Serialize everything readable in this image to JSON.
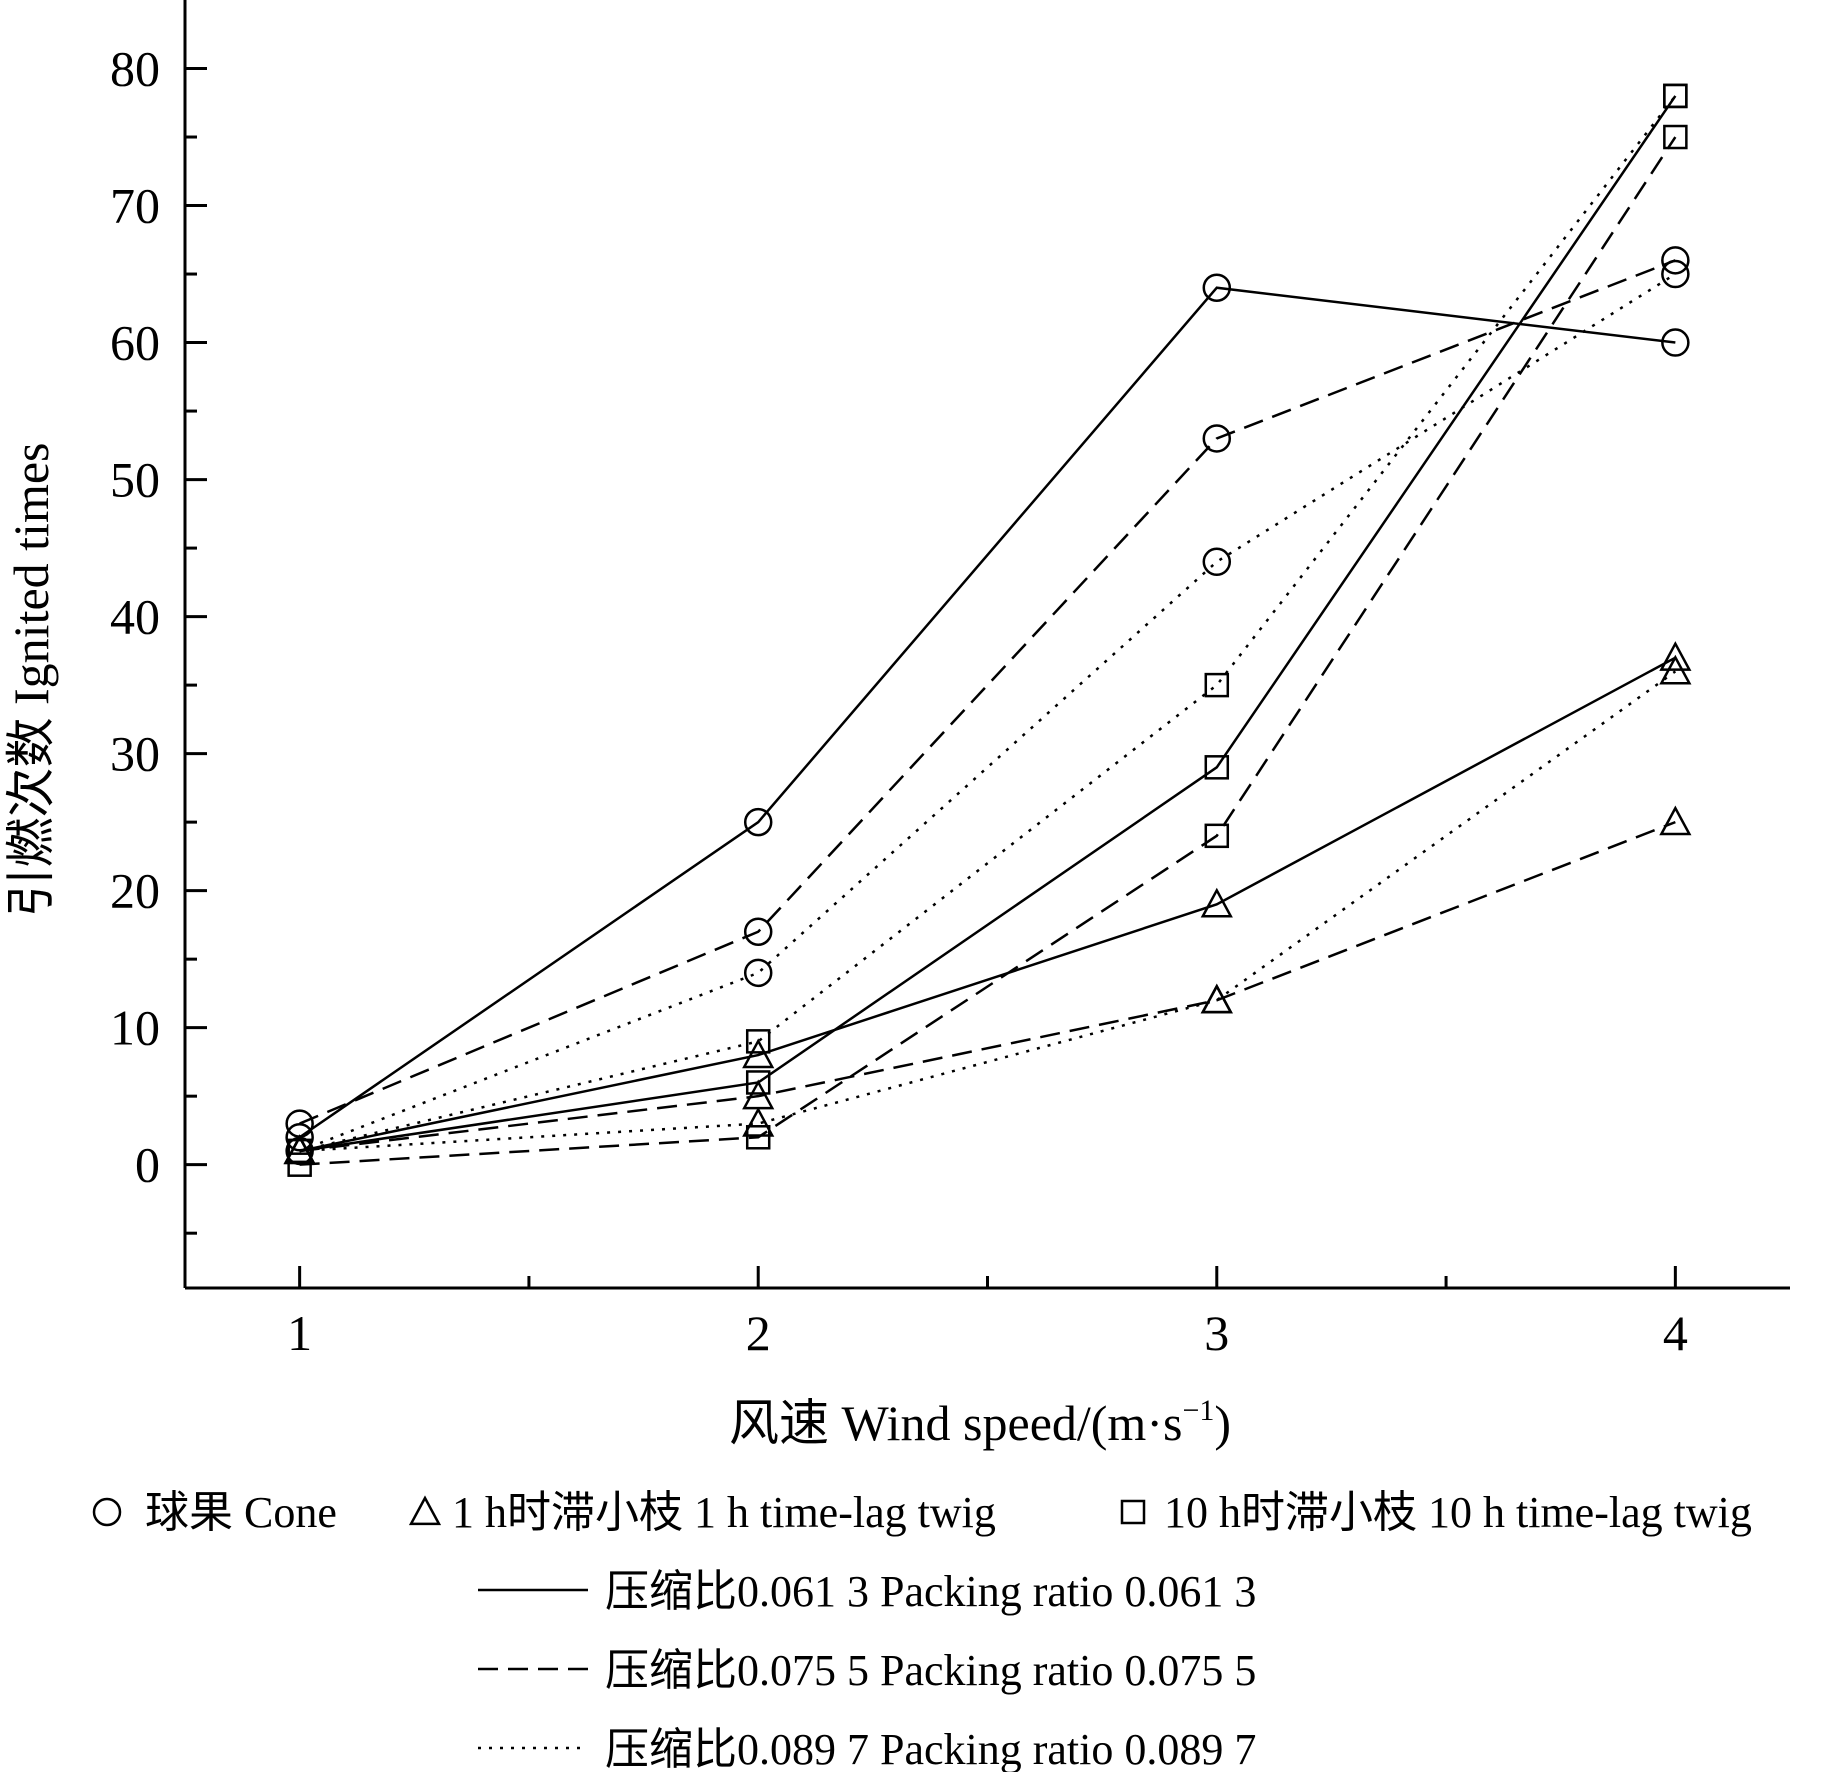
{
  "chart_data": {
    "type": "line",
    "xlabel": "风速 Wind speed/(m·s",
    "xlabel_sup": "−1",
    "xlabel_end": ")",
    "ylabel": "引燃次数  Ignited times",
    "x": [
      1,
      2,
      3,
      4
    ],
    "xlim": [
      0.75,
      4.25
    ],
    "ylim": [
      -9,
      85
    ],
    "x_ticks": [
      1,
      2,
      3,
      4
    ],
    "x_minor_ticks": [
      1.5,
      2.5,
      3.5
    ],
    "y_ticks": [
      0,
      10,
      20,
      30,
      40,
      50,
      60,
      70,
      80
    ],
    "y_minor_ticks": [
      -5,
      5,
      15,
      25,
      35,
      45,
      55,
      65,
      75
    ],
    "grid": false,
    "legend_placement": "bottom",
    "markers": [
      {
        "id": "cone",
        "shape": "circle",
        "label": "球果 Cone"
      },
      {
        "id": "twig1h",
        "shape": "triangle",
        "label": "1 h时滞小枝  1 h time-lag twig"
      },
      {
        "id": "twig10h",
        "shape": "square",
        "label": "10 h时滞小枝  10 h time-lag twig"
      }
    ],
    "line_styles": [
      {
        "id": "solid",
        "dash": "",
        "label": "压缩比0.061 3  Packing ratio 0.061 3"
      },
      {
        "id": "dashed",
        "dash": "20,10",
        "label": "压缩比0.075 5  Packing ratio 0.075 5"
      },
      {
        "id": "dotted",
        "dash": "3,8",
        "label": "压缩比0.089 7  Packing ratio 0.089 7"
      }
    ],
    "series": [
      {
        "marker": "cone",
        "line": "solid",
        "values": [
          2,
          25,
          64,
          60
        ]
      },
      {
        "marker": "cone",
        "line": "dashed",
        "values": [
          3,
          17,
          53,
          66
        ]
      },
      {
        "marker": "cone",
        "line": "dotted",
        "values": [
          1,
          14,
          44,
          65
        ]
      },
      {
        "marker": "twig1h",
        "line": "solid",
        "values": [
          1,
          8,
          19,
          37
        ]
      },
      {
        "marker": "twig1h",
        "line": "dashed",
        "values": [
          1,
          5,
          12,
          25
        ]
      },
      {
        "marker": "twig1h",
        "line": "dotted",
        "values": [
          1,
          3,
          12,
          36
        ]
      },
      {
        "marker": "twig10h",
        "line": "solid",
        "values": [
          1,
          6,
          29,
          78
        ]
      },
      {
        "marker": "twig10h",
        "line": "dashed",
        "values": [
          0,
          2,
          24,
          75
        ]
      },
      {
        "marker": "twig10h",
        "line": "dotted",
        "values": [
          1,
          9,
          35,
          78
        ]
      }
    ]
  }
}
